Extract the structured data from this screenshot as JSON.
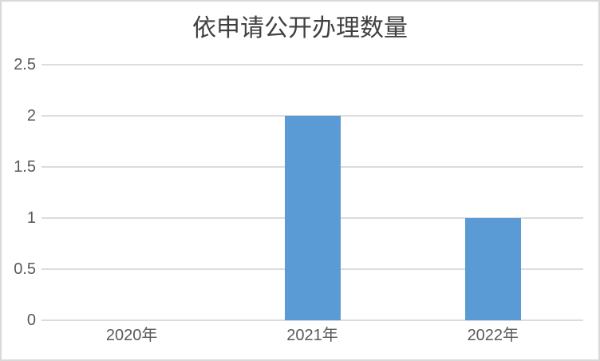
{
  "chart_data": {
    "type": "bar",
    "title": "依申请公开办理数量",
    "categories": [
      "2020年",
      "2021年",
      "2022年"
    ],
    "values": [
      0,
      2,
      1
    ],
    "xlabel": "",
    "ylabel": "",
    "ylim": [
      0,
      2.5
    ],
    "yticks": [
      {
        "value": 0,
        "label": "0"
      },
      {
        "value": 0.5,
        "label": "0.5"
      },
      {
        "value": 1,
        "label": "1"
      },
      {
        "value": 1.5,
        "label": "1.5"
      },
      {
        "value": 2,
        "label": "2"
      },
      {
        "value": 2.5,
        "label": "2.5"
      }
    ],
    "grid": true,
    "legend": false,
    "colors": {
      "bar": "#5b9bd5",
      "gridline": "#dcdcdc",
      "axis_text": "#595959",
      "title_text": "#404040",
      "chart_border": "#d9d9d9",
      "background": "#ffffff"
    }
  }
}
